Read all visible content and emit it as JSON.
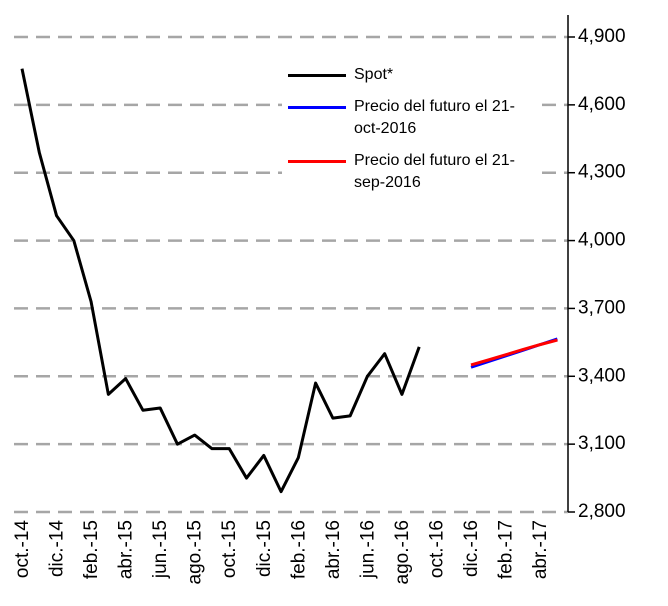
{
  "chart_data": {
    "type": "line",
    "categories": [
      "oct.-14",
      null,
      "dic.-14",
      null,
      "feb.-15",
      null,
      "abr.-15",
      null,
      "jun.-15",
      null,
      "ago.-15",
      null,
      "oct.-15",
      null,
      "dic.-15",
      null,
      "feb.-16",
      null,
      "abr.-16",
      null,
      "jun.-16",
      null,
      "ago.-16",
      null,
      "oct.-16",
      null,
      "dic.-16",
      null,
      "feb.-17",
      null,
      "abr.-17",
      null
    ],
    "series": [
      {
        "name": "Spot*",
        "color": "#000000",
        "values": [
          4760,
          4390,
          4110,
          4000,
          3730,
          3320,
          3390,
          3250,
          3260,
          3100,
          3140,
          3080,
          3080,
          2950,
          3050,
          2890,
          3040,
          3370,
          3215,
          3225,
          3400,
          3500,
          3320,
          3530,
          null,
          null,
          null,
          null,
          null,
          null,
          null,
          null
        ]
      },
      {
        "name": "Precio del futuro el 21-oct-2016",
        "color": "#0000ff",
        "values": [
          null,
          null,
          null,
          null,
          null,
          null,
          null,
          null,
          null,
          null,
          null,
          null,
          null,
          null,
          null,
          null,
          null,
          null,
          null,
          null,
          null,
          null,
          null,
          null,
          null,
          null,
          3440,
          3465,
          3490,
          3515,
          3540,
          3565
        ]
      },
      {
        "name": "Precio del futuro el 21-sep-2016",
        "color": "#ff0000",
        "values": [
          null,
          null,
          null,
          null,
          null,
          null,
          null,
          null,
          null,
          null,
          null,
          null,
          null,
          null,
          null,
          null,
          null,
          null,
          null,
          null,
          null,
          null,
          null,
          null,
          null,
          null,
          3450,
          3472,
          3495,
          3518,
          3540,
          3560
        ]
      }
    ],
    "ylim": [
      2800,
      4900
    ],
    "yticks": [
      {
        "value": 2800,
        "label": "2,800"
      },
      {
        "value": 3100,
        "label": "3,100"
      },
      {
        "value": 3400,
        "label": "3,400"
      },
      {
        "value": 3700,
        "label": "3,700"
      },
      {
        "value": 4000,
        "label": "4,000"
      },
      {
        "value": 4300,
        "label": "4,300"
      },
      {
        "value": 4600,
        "label": "4,600"
      },
      {
        "value": 4900,
        "label": "4,900"
      }
    ],
    "grid": true
  }
}
